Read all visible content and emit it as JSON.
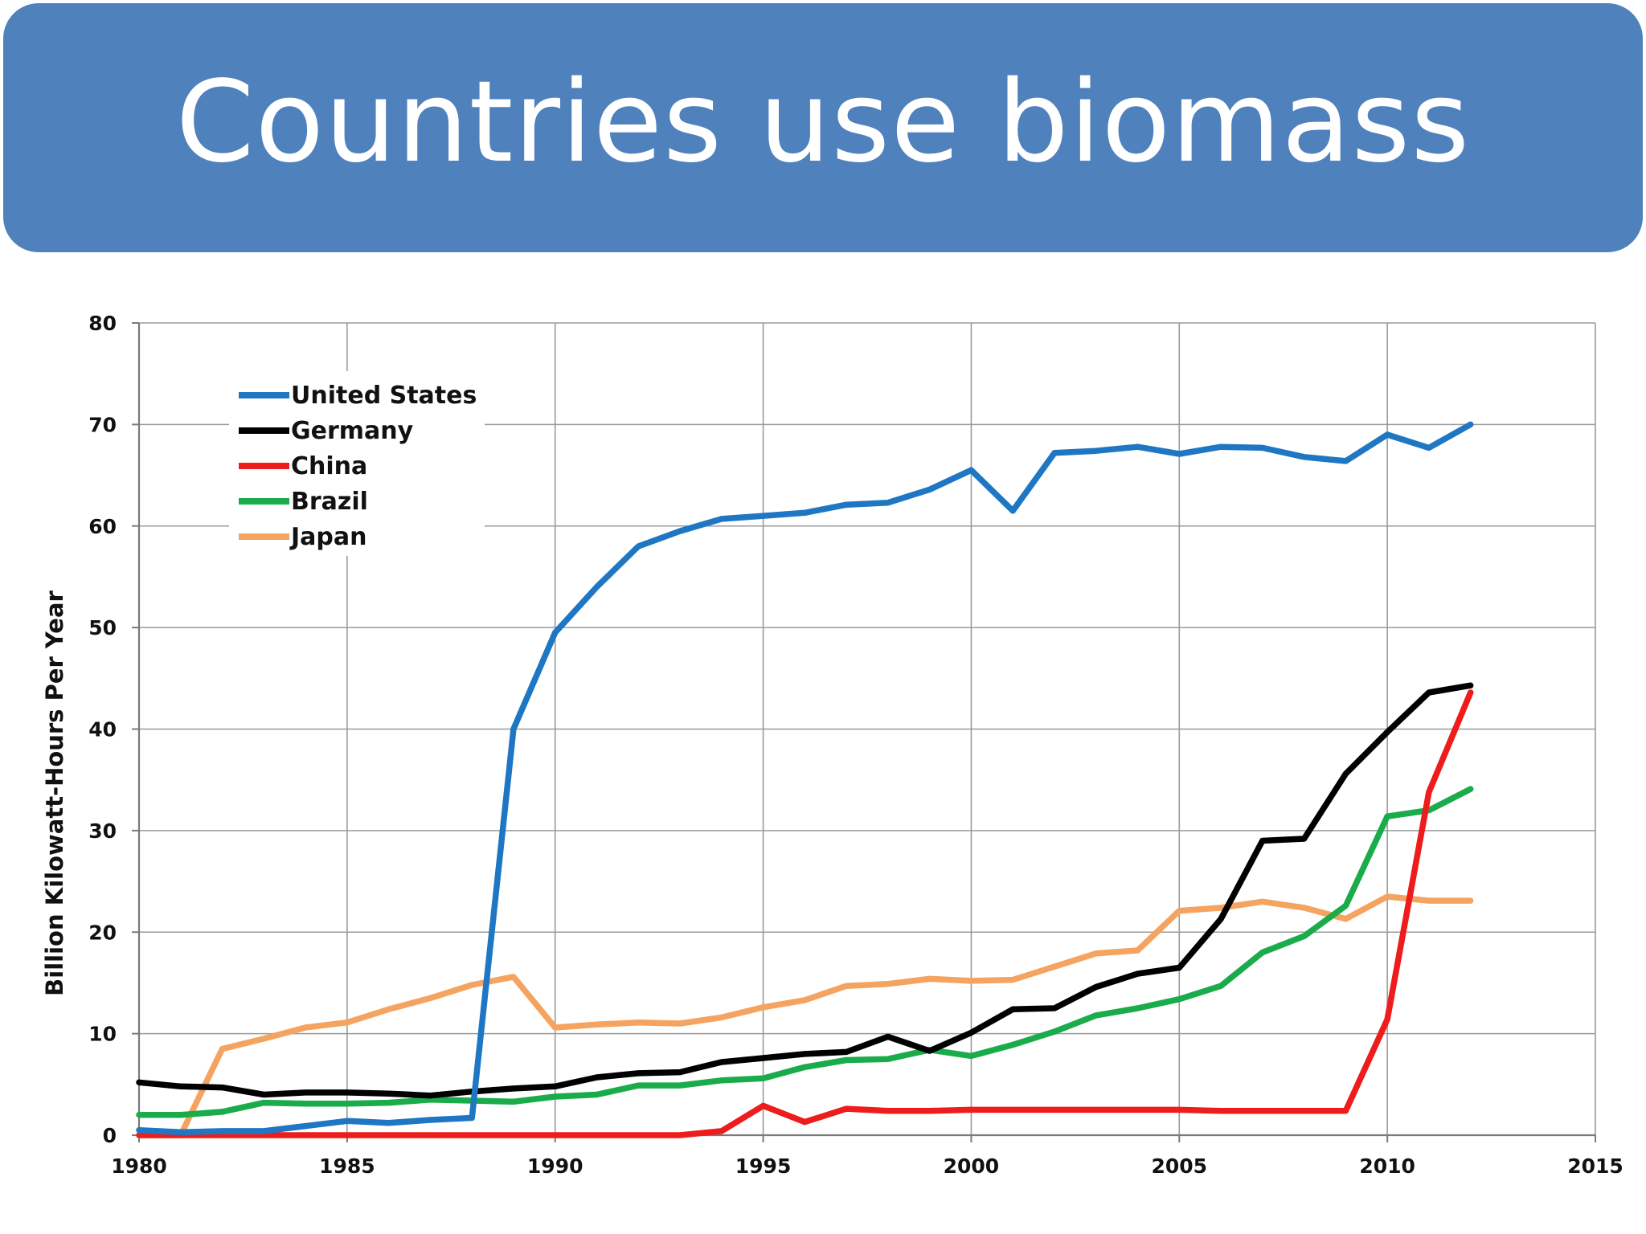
{
  "slide": {
    "title": "Countries use biomass",
    "title_bar_color": "#4f81bd"
  },
  "chart_data": {
    "type": "line",
    "title": "",
    "xlabel": "",
    "ylabel": "Billion Kilowatt-Hours Per Year",
    "xlim": [
      1980,
      2015
    ],
    "ylim": [
      0,
      80
    ],
    "x_ticks": [
      1980,
      1985,
      1990,
      1995,
      2000,
      2005,
      2010,
      2015
    ],
    "y_ticks": [
      0,
      10,
      20,
      30,
      40,
      50,
      60,
      70,
      80
    ],
    "grid": true,
    "legend_position": "top-left",
    "x": [
      1980,
      1981,
      1982,
      1983,
      1984,
      1985,
      1986,
      1987,
      1988,
      1989,
      1990,
      1991,
      1992,
      1993,
      1994,
      1995,
      1996,
      1997,
      1998,
      1999,
      2000,
      2001,
      2002,
      2003,
      2004,
      2005,
      2006,
      2007,
      2008,
      2009,
      2010,
      2011,
      2012
    ],
    "series": [
      {
        "name": "United States",
        "color": "#1f77c4",
        "values": [
          0.5,
          0.3,
          0.4,
          0.4,
          0.9,
          1.4,
          1.2,
          1.5,
          1.7,
          40.0,
          49.5,
          54.0,
          58.0,
          59.5,
          60.7,
          61.0,
          61.3,
          62.1,
          62.3,
          63.6,
          65.5,
          61.5,
          67.2,
          67.4,
          67.8,
          67.1,
          67.8,
          67.7,
          66.8,
          66.4,
          69.0,
          67.7,
          70.0
        ]
      },
      {
        "name": "Germany",
        "color": "#000000",
        "values": [
          5.2,
          4.8,
          4.7,
          4.0,
          4.2,
          4.2,
          4.1,
          3.9,
          4.3,
          4.6,
          4.8,
          5.7,
          6.1,
          6.2,
          7.2,
          7.6,
          8.0,
          8.2,
          9.7,
          8.3,
          10.1,
          12.4,
          12.5,
          14.6,
          15.9,
          16.5,
          21.3,
          29.0,
          29.2,
          35.6,
          39.7,
          43.6,
          44.3
        ]
      },
      {
        "name": "China",
        "color": "#ee1c1c",
        "values": [
          0,
          0,
          0,
          0,
          0,
          0,
          0,
          0,
          0,
          0,
          0,
          0,
          0,
          0,
          0.4,
          2.9,
          1.3,
          2.6,
          2.4,
          2.4,
          2.5,
          2.5,
          2.5,
          2.5,
          2.5,
          2.5,
          2.4,
          2.4,
          2.4,
          2.4,
          11.4,
          33.8,
          43.6
        ]
      },
      {
        "name": "Brazil",
        "color": "#1aab4a",
        "values": [
          2.0,
          2.0,
          2.3,
          3.2,
          3.1,
          3.1,
          3.2,
          3.5,
          3.4,
          3.3,
          3.8,
          4.0,
          4.9,
          4.9,
          5.4,
          5.6,
          6.7,
          7.4,
          7.5,
          8.4,
          7.8,
          8.9,
          10.2,
          11.8,
          12.5,
          13.4,
          14.7,
          18.0,
          19.6,
          22.6,
          31.4,
          32.0,
          34.1
        ]
      },
      {
        "name": "Japan",
        "color": "#f4a460",
        "values": [
          0,
          0,
          8.5,
          9.5,
          10.6,
          11.1,
          12.4,
          13.5,
          14.8,
          15.6,
          10.6,
          10.9,
          11.1,
          11.0,
          11.6,
          12.6,
          13.3,
          14.7,
          14.9,
          15.4,
          15.2,
          15.3,
          16.6,
          17.9,
          18.2,
          22.1,
          22.4,
          23.0,
          22.4,
          21.3,
          23.5,
          23.1,
          23.1
        ]
      }
    ]
  }
}
